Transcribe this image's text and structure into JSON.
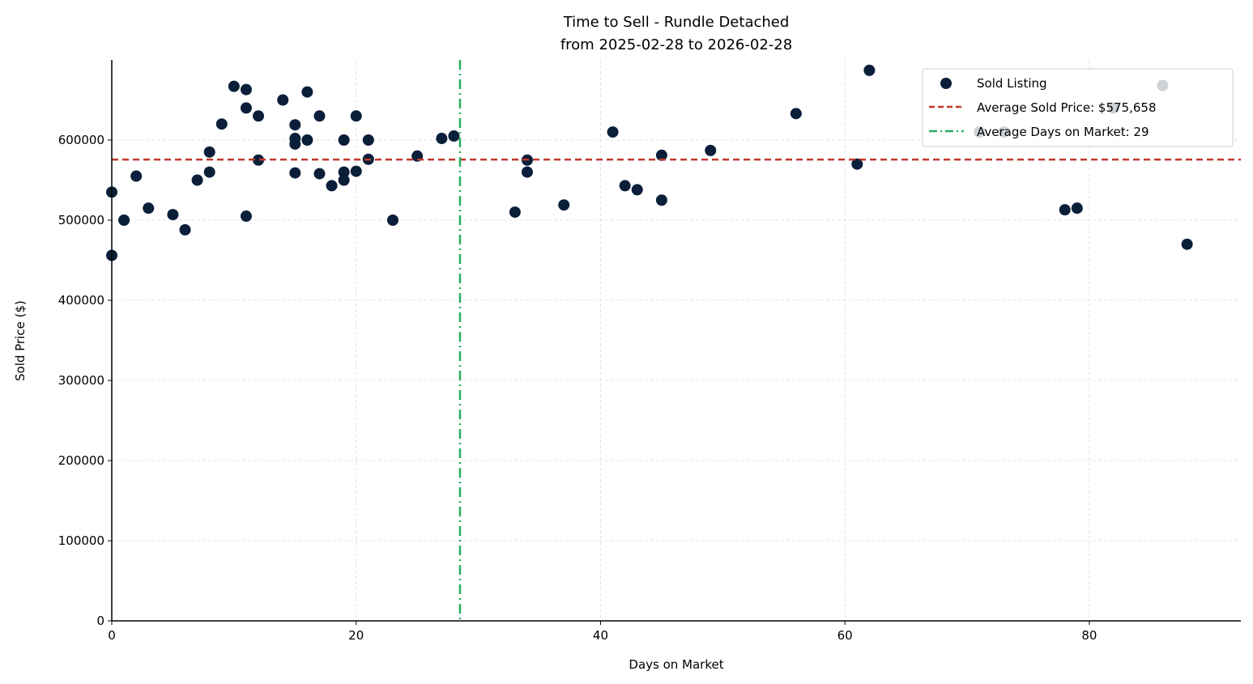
{
  "chart_data": {
    "type": "scatter",
    "title": "Time to Sell - Rundle Detached",
    "subtitle": "from 2025-02-28 to 2026-02-28",
    "xlabel": "Days on Market",
    "ylabel": "Sold Price ($)",
    "xlim": [
      0,
      92.4
    ],
    "ylim": [
      0,
      700000
    ],
    "xticks": [
      0,
      20,
      40,
      60,
      80
    ],
    "yticks": [
      0,
      100000,
      200000,
      300000,
      400000,
      500000,
      600000
    ],
    "grid": true,
    "legend_position": "top-right",
    "colors": {
      "points": "#0b1f3a",
      "avg_price": "#c0392b",
      "avg_days": "#27ae60"
    },
    "average_price": 575658,
    "average_days": 28.5,
    "legend": {
      "points": "Sold Listing",
      "avg_price": "Average Sold Price: $575,658",
      "avg_days": "Average Days on Market: 29"
    },
    "points": [
      [
        0,
        535000
      ],
      [
        0,
        456000
      ],
      [
        1,
        500000
      ],
      [
        2,
        555000
      ],
      [
        3,
        515000
      ],
      [
        5,
        507000
      ],
      [
        6,
        488000
      ],
      [
        7,
        550000
      ],
      [
        8,
        585000
      ],
      [
        8,
        560000
      ],
      [
        9,
        620000
      ],
      [
        10,
        667000
      ],
      [
        11,
        663000
      ],
      [
        11,
        640000
      ],
      [
        11,
        505000
      ],
      [
        12,
        630000
      ],
      [
        12,
        575000
      ],
      [
        14,
        650000
      ],
      [
        15,
        619000
      ],
      [
        15,
        602000
      ],
      [
        15,
        595000
      ],
      [
        15,
        559000
      ],
      [
        16,
        660000
      ],
      [
        16,
        600000
      ],
      [
        17,
        630000
      ],
      [
        17,
        558000
      ],
      [
        18,
        543000
      ],
      [
        19,
        600000
      ],
      [
        19,
        560000
      ],
      [
        19,
        550000
      ],
      [
        20,
        630000
      ],
      [
        20,
        561000
      ],
      [
        21,
        600000
      ],
      [
        21,
        576000
      ],
      [
        23,
        500000
      ],
      [
        25,
        580000
      ],
      [
        27,
        602000
      ],
      [
        28,
        605000
      ],
      [
        33,
        510000
      ],
      [
        34,
        575000
      ],
      [
        34,
        560000
      ],
      [
        37,
        519000
      ],
      [
        41,
        610000
      ],
      [
        42,
        543000
      ],
      [
        43,
        538000
      ],
      [
        45,
        581000
      ],
      [
        45,
        525000
      ],
      [
        49,
        587000
      ],
      [
        56,
        633000
      ],
      [
        61,
        570000
      ],
      [
        62,
        687000
      ],
      [
        71,
        610000
      ],
      [
        73,
        610000
      ],
      [
        78,
        513000
      ],
      [
        79,
        515000
      ],
      [
        82,
        640000
      ],
      [
        86,
        668000
      ],
      [
        88,
        470000
      ]
    ]
  }
}
